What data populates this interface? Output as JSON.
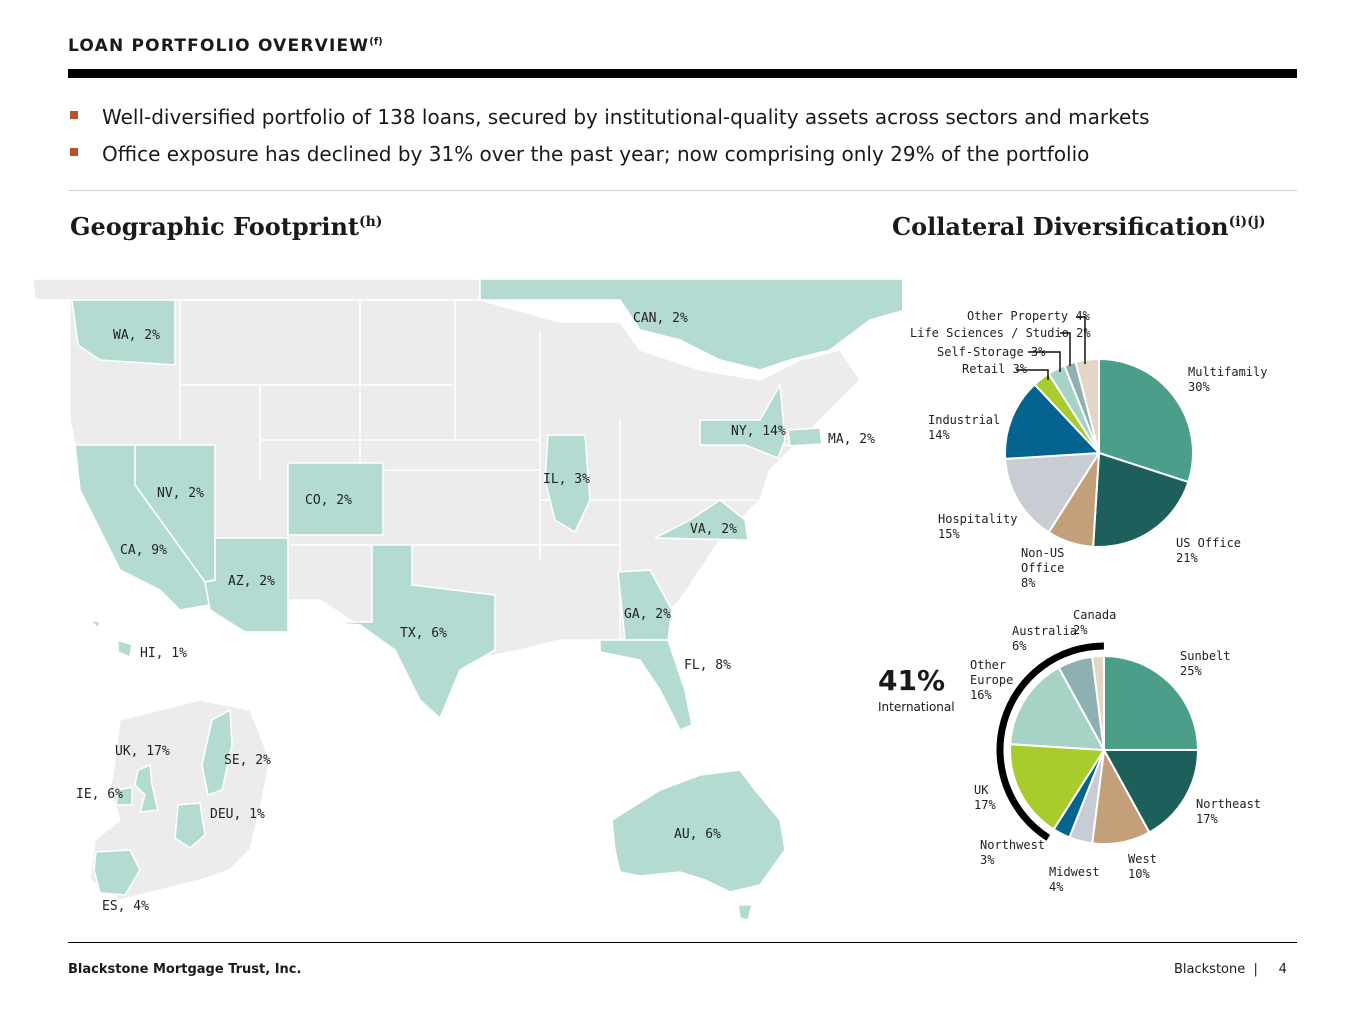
{
  "header": {
    "title": "LOAN PORTFOLIO OVERVIEW",
    "title_note": "(f)",
    "bullets": [
      "Well-diversified portfolio of 138 loans, secured by institutional-quality assets across sectors and markets",
      "Office exposure has declined by 31% over the past year; now comprising only 29% of the portfolio"
    ]
  },
  "geo": {
    "title": "Geographic Footprint",
    "title_note": "(h)",
    "labels": {
      "wa": "WA, 2%",
      "can": "CAN, 2%",
      "ny": "NY, 14%",
      "ma": "MA, 2%",
      "il": "IL, 3%",
      "nv": "NV, 2%",
      "co": "CO, 2%",
      "va": "VA, 2%",
      "ca": "CA, 9%",
      "az": "AZ, 2%",
      "tx": "TX, 6%",
      "ga": "GA, 2%",
      "hi": "HI, 1%",
      "fl": "FL, 8%",
      "uk": "UK, 17%",
      "se": "SE, 2%",
      "ie": "IE, 6%",
      "deu": "DEU, 1%",
      "es": "ES, 4%",
      "au": "AU, 6%"
    },
    "colors": {
      "highlight": "#b4dbd1",
      "base": "#ececec",
      "border": "#ffffff"
    }
  },
  "collateral": {
    "title": "Collateral Diversification",
    "title_note": "(i)(j)"
  },
  "chart_data": [
    {
      "type": "pie",
      "name": "Collateral Diversification",
      "categories": [
        "Multifamily",
        "US Office",
        "Non-US Office",
        "Hospitality",
        "Industrial",
        "Retail",
        "Self-Storage",
        "Life Sciences / Studio",
        "Other Property"
      ],
      "values": [
        30,
        21,
        8,
        15,
        14,
        3,
        3,
        2,
        4
      ],
      "colors": [
        "#4a9e8a",
        "#1d5f5a",
        "#c4a07a",
        "#c8cdd4",
        "#05638f",
        "#a8cc2c",
        "#a6d3c6",
        "#8eb0b0",
        "#e4d6c6"
      ],
      "labels": [
        {
          "line1": "Multifamily",
          "line2": "30%"
        },
        {
          "line1": "US Office",
          "line2": "21%"
        },
        {
          "line1": "Non-US",
          "line2": "Office",
          "line3": "8%"
        },
        {
          "line1": "Hospitality",
          "line2": "15%"
        },
        {
          "line1": "Industrial",
          "line2": "14%"
        },
        {
          "line1": "Retail 3%"
        },
        {
          "line1": "Self-Storage 3%"
        },
        {
          "line1": "Life Sciences / Studio 2%"
        },
        {
          "line1": "Other Property 4%"
        }
      ]
    },
    {
      "type": "pie",
      "name": "Geographic Diversification",
      "categories": [
        "Sunbelt",
        "Northeast",
        "West",
        "Midwest",
        "Northwest",
        "UK",
        "Other Europe",
        "Australia",
        "Canada"
      ],
      "values": [
        25,
        17,
        10,
        4,
        3,
        17,
        16,
        6,
        2
      ],
      "colors": [
        "#4a9e8a",
        "#1d5f5a",
        "#c4a07a",
        "#c8cdd4",
        "#05638f",
        "#a8cc2c",
        "#a6d3c6",
        "#8eb0b0",
        "#e4d6c6"
      ],
      "labels": [
        {
          "line1": "Sunbelt",
          "line2": "25%"
        },
        {
          "line1": "Northeast",
          "line2": "17%"
        },
        {
          "line1": "West",
          "line2": "10%"
        },
        {
          "line1": "Midwest",
          "line2": "4%"
        },
        {
          "line1": "Northwest",
          "line2": "3%"
        },
        {
          "line1": "UK",
          "line2": "17%"
        },
        {
          "line1": "Other",
          "line2": "Europe",
          "line3": "16%"
        },
        {
          "line1": "Australia",
          "line2": "6%"
        },
        {
          "line1": "Canada",
          "line2": "2%"
        }
      ],
      "callout_value": "41%",
      "callout_label": "International"
    }
  ],
  "footer": {
    "left": "Blackstone Mortgage Trust, Inc.",
    "brand": "Blackstone",
    "separator": "|",
    "page": "4"
  }
}
